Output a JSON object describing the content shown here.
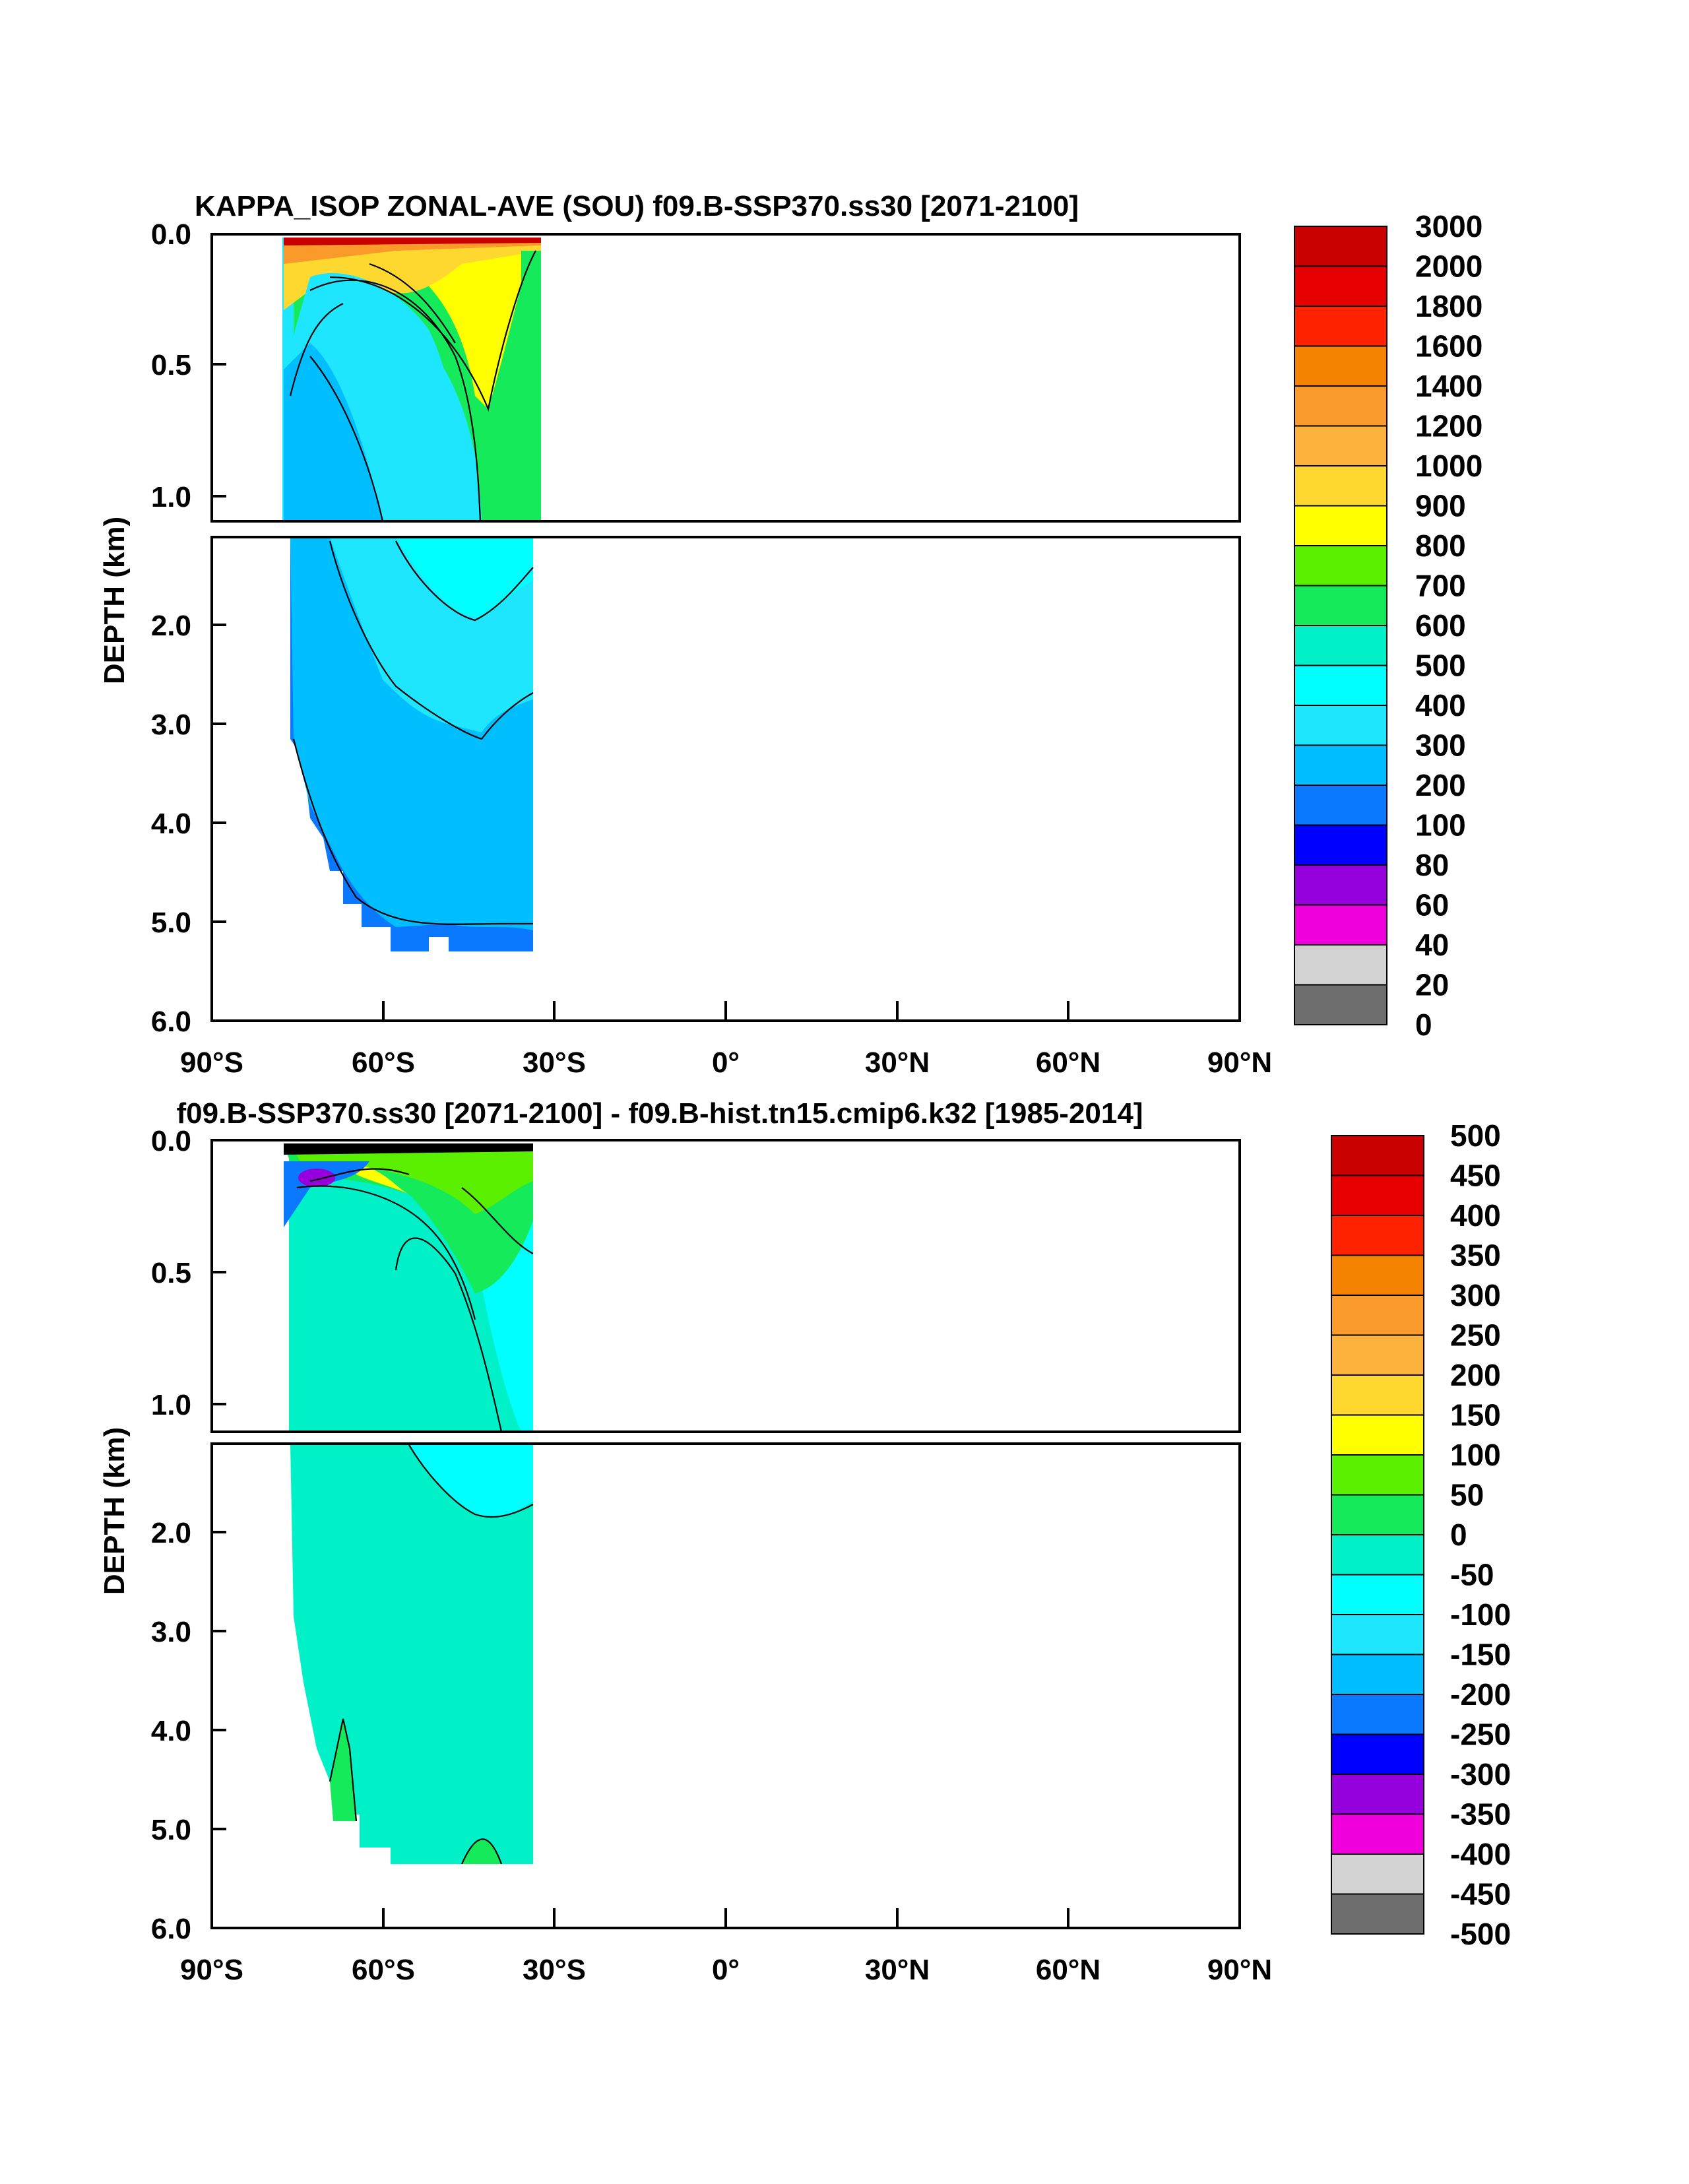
{
  "chart_data": [
    {
      "type": "heatmap",
      "title": "KAPPA_ISOP ZONAL-AVE (SOU) f09.B-SSP370.ss30 [2071-2100]",
      "ylabel": "DEPTH (km)",
      "xlabel": "",
      "x_ticks": [
        "90°S",
        "60°S",
        "30°S",
        "0°",
        "30°N",
        "60°N",
        "90°N"
      ],
      "x_range": [
        -90,
        90
      ],
      "upper_panel_y_ticks": [
        "0.0",
        "0.5",
        "1.0"
      ],
      "lower_panel_y_ticks": [
        "2.0",
        "3.0",
        "4.0",
        "5.0",
        "6.0"
      ],
      "upper_panel_depth_km": [
        0,
        1.1
      ],
      "lower_panel_depth_km": [
        1.1,
        6.0
      ],
      "data_extent_lat": [
        -78,
        -34
      ],
      "colorbar_labels": [
        "3000",
        "2000",
        "1800",
        "1600",
        "1400",
        "1200",
        "1000",
        "900",
        "800",
        "700",
        "600",
        "500",
        "400",
        "300",
        "200",
        "100",
        "80",
        "60",
        "40",
        "20",
        "0"
      ],
      "colorbar_colors": [
        "#c80000",
        "#e60000",
        "#ff2200",
        "#f58200",
        "#fa9a2a",
        "#fdb23e",
        "#fed82e",
        "#ffff00",
        "#5af000",
        "#14ea5a",
        "#00f0c8",
        "#00ffff",
        "#1ee6ff",
        "#00beff",
        "#0a78ff",
        "#0000ff",
        "#9600dc",
        "#f000dc",
        "#d2d2d2",
        "#6e6e6e"
      ]
    },
    {
      "type": "heatmap",
      "title": "f09.B-SSP370.ss30 [2071-2100] - f09.B-hist.tn15.cmip6.k32 [1985-2014]",
      "ylabel": "DEPTH (km)",
      "xlabel": "",
      "x_ticks": [
        "90°S",
        "60°S",
        "30°S",
        "0°",
        "30°N",
        "60°N",
        "90°N"
      ],
      "x_range": [
        -90,
        90
      ],
      "upper_panel_y_ticks": [
        "0.0",
        "0.5",
        "1.0"
      ],
      "lower_panel_y_ticks": [
        "2.0",
        "3.0",
        "4.0",
        "5.0",
        "6.0"
      ],
      "upper_panel_depth_km": [
        0,
        1.1
      ],
      "lower_panel_depth_km": [
        1.1,
        6.0
      ],
      "data_extent_lat": [
        -78,
        -34
      ],
      "colorbar_labels": [
        "500",
        "450",
        "400",
        "350",
        "300",
        "250",
        "200",
        "150",
        "100",
        "50",
        "0",
        "-50",
        "-100",
        "-150",
        "-200",
        "-250",
        "-300",
        "-350",
        "-400",
        "-450",
        "-500"
      ],
      "colorbar_colors": [
        "#c80000",
        "#e60000",
        "#ff2200",
        "#f58200",
        "#fa9a2a",
        "#fdb23e",
        "#fed82e",
        "#ffff00",
        "#5af000",
        "#14ea5a",
        "#00f0c8",
        "#00ffff",
        "#1ee6ff",
        "#00beff",
        "#0a78ff",
        "#0000ff",
        "#9600dc",
        "#f000dc",
        "#d2d2d2",
        "#6e6e6e"
      ]
    }
  ]
}
